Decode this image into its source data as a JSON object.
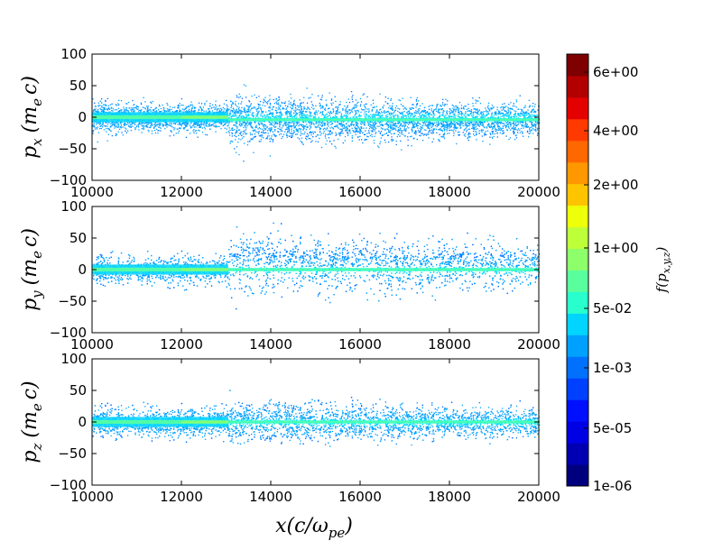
{
  "chart_data": [
    {
      "type": "heatmap",
      "title": "",
      "xlabel": "",
      "ylabel": "p_x (m_e c)",
      "ylabel_parts": {
        "p": "p",
        "sub": "x",
        "rest": "(m",
        "rest_sub": "e",
        "rest_end": "c)"
      },
      "xlim": [
        10000,
        20000
      ],
      "ylim": [
        -100,
        100
      ],
      "xticks": [
        "10000",
        "12000",
        "14000",
        "16000",
        "18000",
        "20000"
      ],
      "yticks": [
        "100",
        "50",
        "0",
        "−50",
        "−100"
      ],
      "features": {
        "shock_x": 13050,
        "upstream_core_halfwidth": 8,
        "upstream_spread": 20,
        "downstream_spread": 25,
        "downstream_beam_offset": -4
      }
    },
    {
      "type": "heatmap",
      "title": "",
      "xlabel": "",
      "ylabel": "p_y (m_e c)",
      "ylabel_parts": {
        "p": "p",
        "sub": "y",
        "rest": "(m",
        "rest_sub": "e",
        "rest_end": "c)"
      },
      "xlim": [
        10000,
        20000
      ],
      "ylim": [
        -100,
        100
      ],
      "xticks": [
        "10000",
        "12000",
        "14000",
        "16000",
        "18000",
        "20000"
      ],
      "yticks": [
        "100",
        "50",
        "0",
        "−50",
        "−100"
      ],
      "features": {
        "shock_x": 13050,
        "upstream_core_halfwidth": 8,
        "upstream_spread": 20,
        "downstream_spread": 30,
        "downstream_beam_offset": 0,
        "downstream_upper_bias": 25
      }
    },
    {
      "type": "heatmap",
      "title": "",
      "xlabel": "x(c/ω_pe)",
      "xlabel_parts": {
        "main": "x(c/ω",
        "sub": "pe",
        "end": ")"
      },
      "ylabel": "p_z (m_e c)",
      "ylabel_parts": {
        "p": "p",
        "sub": "z",
        "rest": "(m",
        "rest_sub": "e",
        "rest_end": "c)"
      },
      "xlim": [
        10000,
        20000
      ],
      "ylim": [
        -100,
        100
      ],
      "xticks": [
        "10000",
        "12000",
        "14000",
        "16000",
        "18000",
        "20000"
      ],
      "yticks": [
        "100",
        "50",
        "0",
        "−50",
        "−100"
      ],
      "features": {
        "shock_x": 13050,
        "upstream_core_halfwidth": 8,
        "upstream_spread": 20,
        "downstream_spread": 22,
        "downstream_beam_offset": 0
      }
    }
  ],
  "colorbar": {
    "label": "f(p_x,y,z)",
    "label_parts": {
      "f": "f(p",
      "sub": "x,y,z",
      "end": ")"
    },
    "scale": "log",
    "range": [
      1e-06,
      6
    ],
    "ticks": [
      "6e+00",
      "4e+00",
      "2e+00",
      "1e+00",
      "5e-02",
      "1e-03",
      "5e-05",
      "1e-06"
    ],
    "colormap": "jet",
    "colors": [
      "#00007f",
      "#0000b2",
      "#0000e5",
      "#0010ff",
      "#0040ff",
      "#0070ff",
      "#00a0ff",
      "#00d4ff",
      "#29ffcd",
      "#59ff9d",
      "#8dff6a",
      "#bdff39",
      "#edff09",
      "#ffc400",
      "#ff9700",
      "#ff6700",
      "#ff3a00",
      "#e50000",
      "#b20000",
      "#7f0000"
    ]
  }
}
